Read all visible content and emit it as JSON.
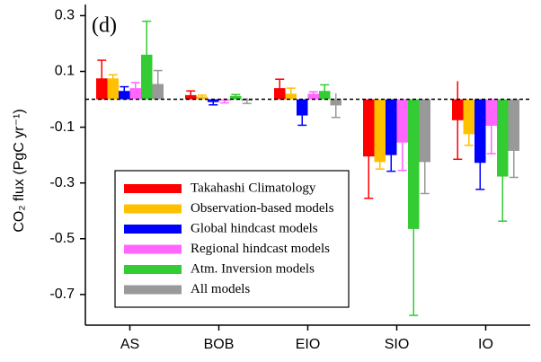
{
  "chart_data": {
    "type": "bar",
    "panel_label": "(d)",
    "y_label": "CO₂ flux (PgC yr⁻¹)",
    "categories": [
      "AS",
      "BOB",
      "EIO",
      "SIO",
      "IO"
    ],
    "series": [
      {
        "name": "Takahashi Climatology",
        "color": "#ff0000",
        "values": [
          0.075,
          0.015,
          0.04,
          -0.205,
          -0.075
        ],
        "errors": [
          0.065,
          0.015,
          0.032,
          0.15,
          0.14
        ]
      },
      {
        "name": "Observation-based models",
        "color": "#ffc000",
        "values": [
          0.075,
          0.01,
          0.02,
          -0.225,
          -0.125
        ],
        "errors": [
          0.013,
          0.005,
          0.02,
          0.025,
          0.04
        ]
      },
      {
        "name": "Global hindcast models",
        "color": "#0000ff",
        "values": [
          0.03,
          -0.01,
          -0.058,
          -0.2,
          -0.228
        ],
        "errors": [
          0.015,
          0.01,
          0.035,
          0.058,
          0.095
        ]
      },
      {
        "name": "Regional hindcast models",
        "color": "#ff66ff",
        "values": [
          0.04,
          -0.005,
          0.02,
          -0.155,
          -0.095
        ],
        "errors": [
          0.02,
          0.008,
          0.007,
          0.1,
          0.1
        ]
      },
      {
        "name": "Atm. Inversion models",
        "color": "#33cc33",
        "values": [
          0.16,
          0.012,
          0.03,
          -0.465,
          -0.277
        ],
        "errors": [
          0.12,
          0.005,
          0.022,
          0.31,
          0.16
        ]
      },
      {
        "name": "All models",
        "color": "#999999",
        "values": [
          0.055,
          -0.005,
          -0.022,
          -0.225,
          -0.185
        ],
        "errors": [
          0.048,
          0.01,
          0.043,
          0.113,
          0.095
        ]
      }
    ],
    "ylim": [
      -0.81,
      0.34
    ],
    "yticks": [
      0.3,
      0.1,
      -0.1,
      -0.3,
      -0.5,
      -0.7
    ],
    "grid": false,
    "legend": "lower left"
  }
}
